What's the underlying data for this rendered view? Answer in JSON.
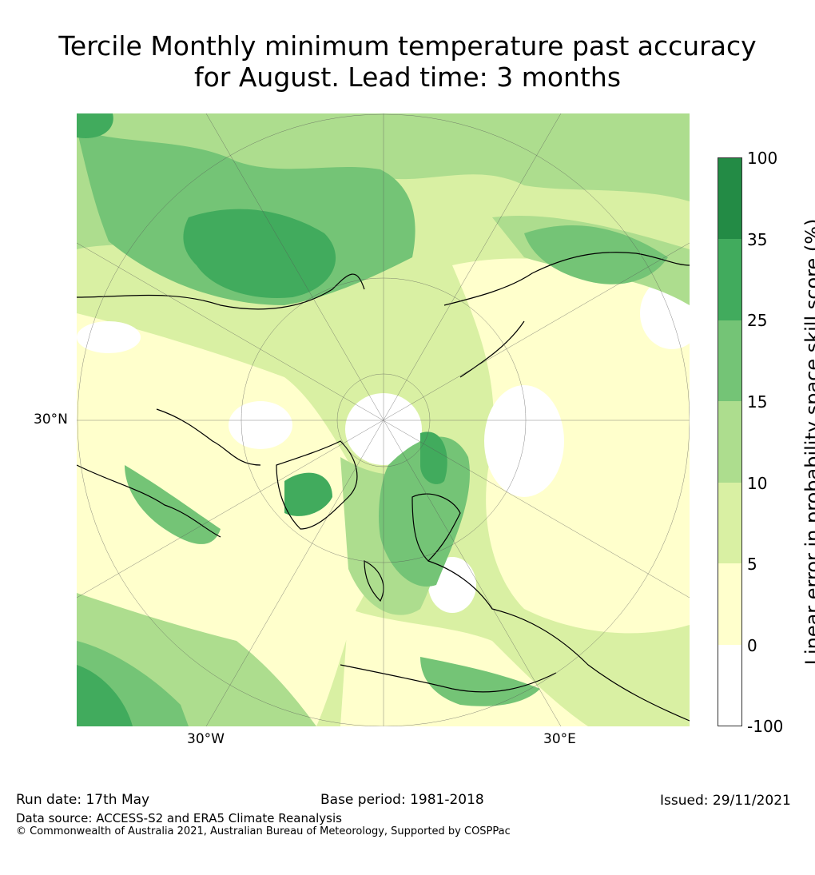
{
  "title_line1": "Tercile Monthly minimum temperature past accuracy",
  "title_line2": "for August. Lead time: 3 months",
  "map": {
    "projection": "north polar stereographic",
    "lat_label": "30°N",
    "lon_labels": [
      "30°W",
      "30°E"
    ]
  },
  "colorbar": {
    "label": "Linear error in probability space skill score (%)",
    "ticks": [
      "100",
      "35",
      "25",
      "15",
      "10",
      "5",
      "0",
      "-100"
    ],
    "colors": [
      "#238b45",
      "#41ab5d",
      "#74c476",
      "#addd8e",
      "#d9f0a3",
      "#ffffcc",
      "#ffffff"
    ]
  },
  "footer": {
    "run_date": "Run date: 17th May",
    "base_period": "Base period: 1981-2018",
    "issued": "Issued: 29/11/2021",
    "data_source": "Data source: ACCESS-S2 and ERA5 Climate Reanalysis",
    "copyright": "© Commonwealth of Australia 2021, Australian Bureau of Meteorology, Supported by COSPPac"
  }
}
